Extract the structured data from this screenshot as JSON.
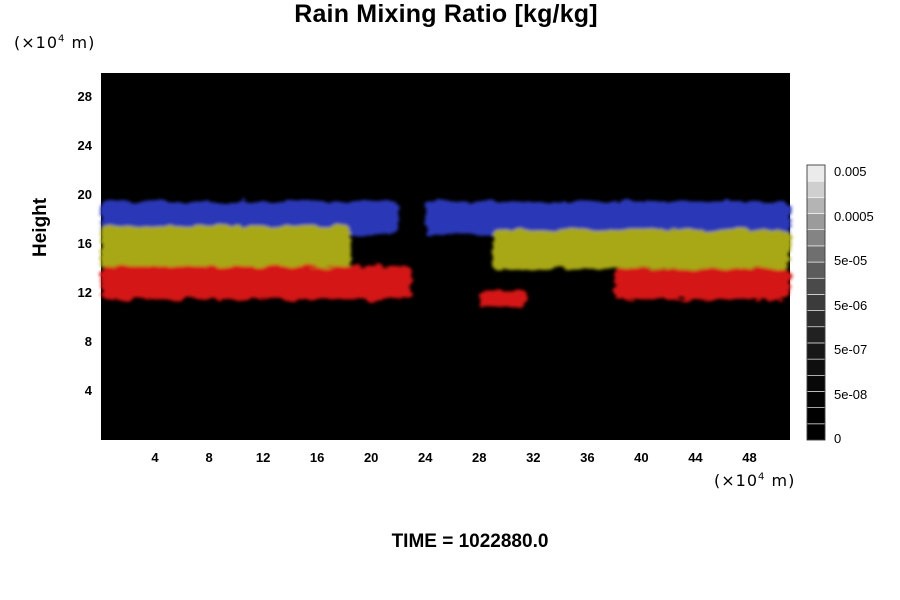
{
  "title": "Rain Mixing Ratio [kg/kg]",
  "time_label": "TIME = 1022880.0",
  "chart_data": {
    "type": "heatmap",
    "title": "Rain Mixing Ratio [kg/kg]",
    "ylabel": "Height",
    "xlabel": "",
    "y_unit_prefix": "(×10",
    "y_unit_exp": "4",
    "y_unit_suffix": " m)",
    "x_unit_prefix": "(×10",
    "x_unit_exp": "4",
    "x_unit_suffix": " m)",
    "xlim": [
      0,
      51
    ],
    "ylim": [
      0,
      30
    ],
    "xticks": [
      "4",
      "8",
      "12",
      "16",
      "20",
      "24",
      "28",
      "32",
      "36",
      "40",
      "44",
      "48"
    ],
    "yticks": [
      "4",
      "8",
      "12",
      "16",
      "20",
      "24",
      "28"
    ],
    "colorbar": {
      "ticks": [
        "0.005",
        "0.0005",
        "5e-05",
        "5e-06",
        "5e-07",
        "5e-08",
        "0"
      ],
      "levels": 17
    },
    "background_color": "#000000",
    "bands": [
      {
        "name": "blue",
        "color": "#2c38b8",
        "bottom": 17.5,
        "top": 19.5
      },
      {
        "name": "yellow",
        "color": "#a8a818",
        "bottom": 14,
        "top": 17.5
      },
      {
        "name": "red",
        "color": "#d41414",
        "bottom": 11.5,
        "top": 14
      }
    ],
    "regions": [
      {
        "band": "blue",
        "x0": 0,
        "x1": 22,
        "ybot": 16.8,
        "ytop": 19.5
      },
      {
        "band": "blue",
        "x0": 24,
        "x1": 51,
        "ybot": 16.8,
        "ytop": 19.5
      },
      {
        "band": "yellow",
        "x0": 0,
        "x1": 18.5,
        "ybot": 13.8,
        "ytop": 17.5
      },
      {
        "band": "yellow",
        "x0": 29,
        "x1": 51,
        "ybot": 14,
        "ytop": 17.2
      },
      {
        "band": "red",
        "x0": 0,
        "x1": 23,
        "ybot": 11.5,
        "ytop": 14.2
      },
      {
        "band": "red",
        "x0": 38,
        "x1": 51,
        "ybot": 11.5,
        "ytop": 14
      },
      {
        "band": "red",
        "x0": 28,
        "x1": 31.5,
        "ybot": 10.8,
        "ytop": 12.3
      }
    ]
  }
}
